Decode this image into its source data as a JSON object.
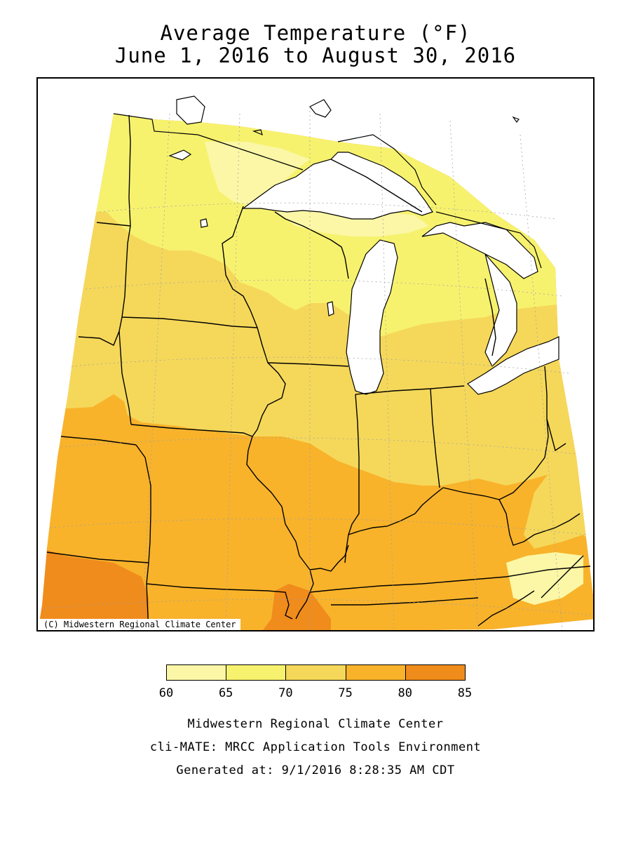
{
  "title": {
    "line1": "Average Temperature (°F)",
    "line2": "June 1, 2016 to August 30, 2016"
  },
  "map": {
    "copyright": "(C) Midwestern Regional Climate Center",
    "zone_colors": {
      "60-65": "#fbf7a6",
      "65-70": "#f7f26e",
      "70-75": "#f5d85a",
      "75-80": "#f8b32b",
      "80-85": "#ef8c1c"
    }
  },
  "legend": {
    "colors": [
      "#fbf7a6",
      "#f7f26e",
      "#f5d85a",
      "#f8b32b",
      "#ef8c1c"
    ],
    "labels": [
      "60",
      "65",
      "70",
      "75",
      "80",
      "85"
    ]
  },
  "footer": {
    "line1": "Midwestern Regional Climate Center",
    "line2": "cli-MATE: MRCC Application Tools Environment",
    "line3": "Generated at: 9/1/2016 8:28:35 AM CDT"
  }
}
